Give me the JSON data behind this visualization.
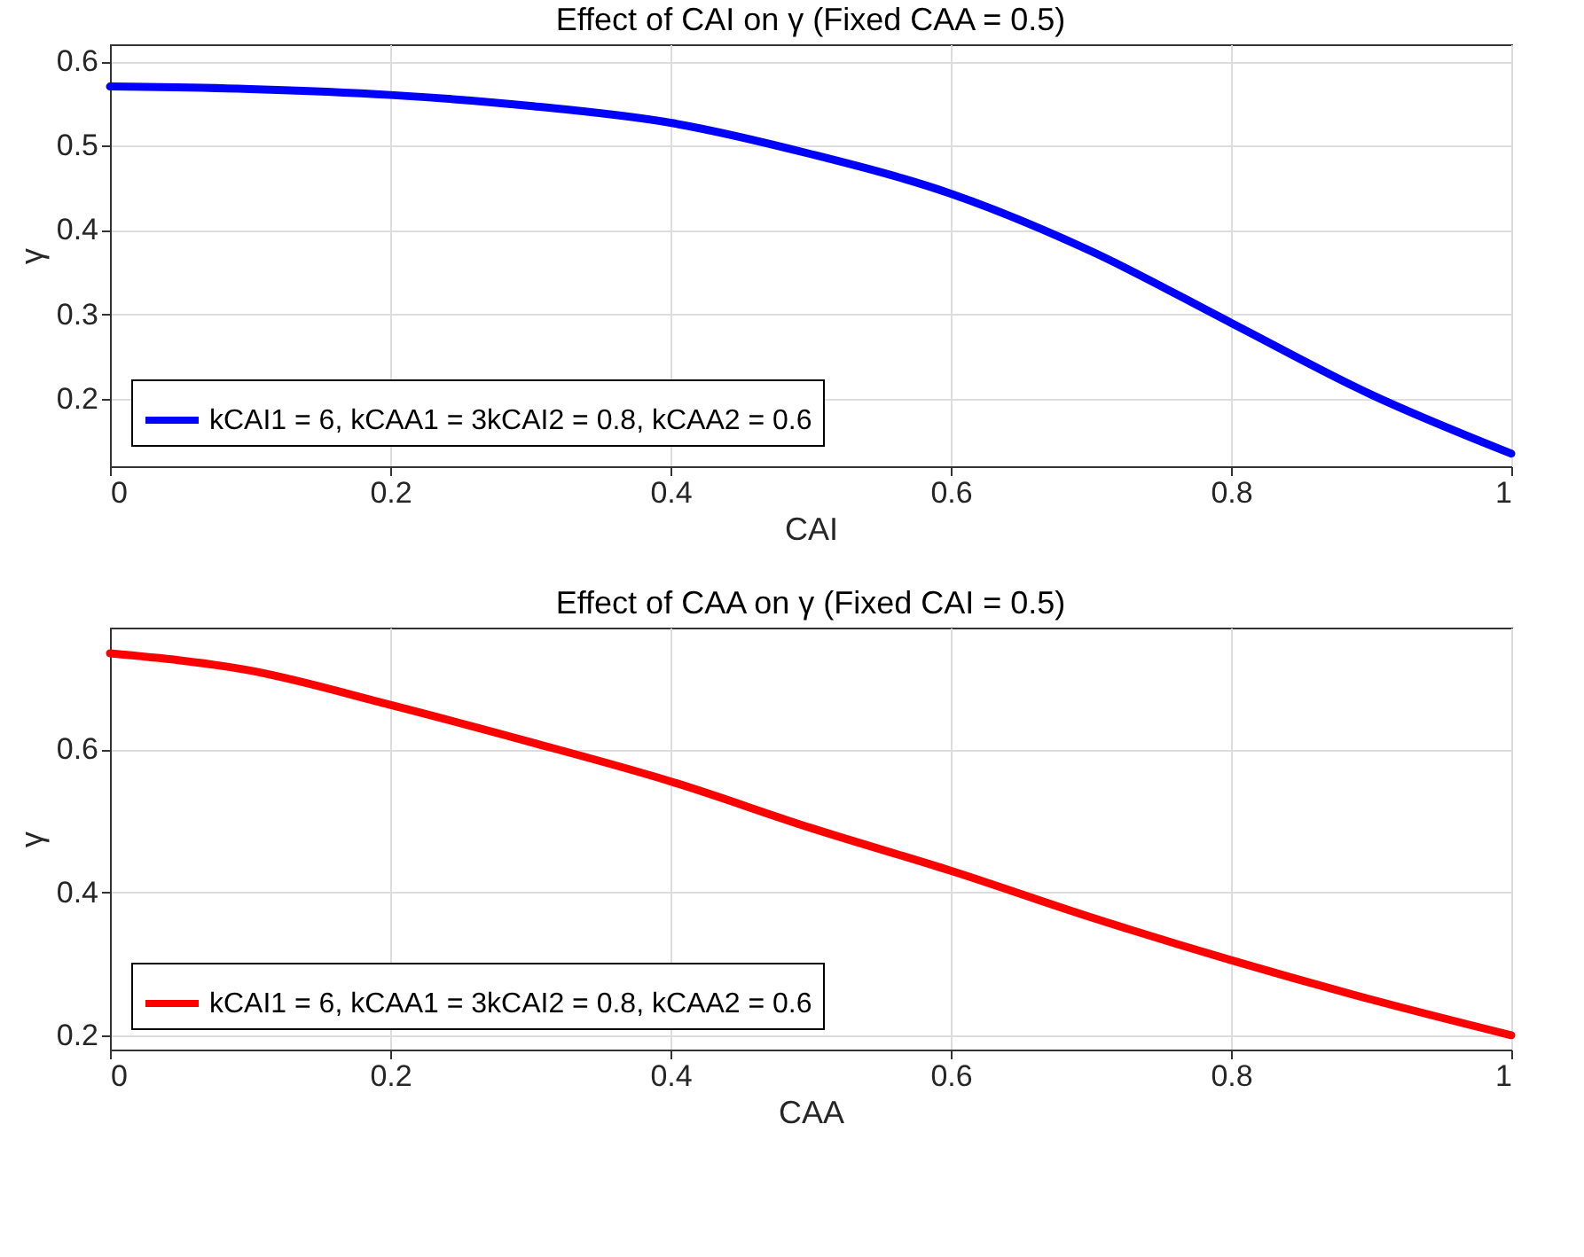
{
  "chart_data": [
    {
      "type": "line",
      "title": "Effect of CAI on γ (Fixed CAA = 0.5)",
      "xlabel": "CAI",
      "ylabel": "γ",
      "x": [
        0,
        0.1,
        0.2,
        0.3,
        0.4,
        0.5,
        0.6,
        0.7,
        0.8,
        0.9,
        1.0
      ],
      "series": [
        {
          "name": "kCAI1 = 6, kCAA1 = 3kCAI2 = 0.8, kCAA2 = 0.6",
          "color": "#0000ff",
          "values": [
            0.57,
            0.567,
            0.56,
            0.547,
            0.527,
            0.49,
            0.443,
            0.375,
            0.29,
            0.205,
            0.135
          ]
        }
      ],
      "xlim": [
        0,
        1
      ],
      "xticks": [
        0,
        0.2,
        0.4,
        0.6,
        0.8,
        1
      ],
      "ylim": [
        0.12,
        0.62
      ],
      "yticks": [
        0.2,
        0.3,
        0.4,
        0.5,
        0.6
      ],
      "grid": true,
      "legend": "bottom left",
      "marker": "none",
      "line_style": "solid"
    },
    {
      "type": "line",
      "title": "Effect of CAA on γ (Fixed CAI = 0.5)",
      "xlabel": "CAA",
      "ylabel": "γ",
      "x": [
        0,
        0.1,
        0.2,
        0.3,
        0.4,
        0.5,
        0.6,
        0.7,
        0.8,
        0.9,
        1.0
      ],
      "series": [
        {
          "name": "kCAI1 = 6, kCAA1 = 3kCAI2 = 0.8, kCAA2 = 0.6",
          "color": "#ff0000",
          "values": [
            0.734,
            0.71,
            0.662,
            0.61,
            0.555,
            0.49,
            0.43,
            0.365,
            0.305,
            0.25,
            0.2
          ]
        }
      ],
      "xlim": [
        0,
        1
      ],
      "xticks": [
        0,
        0.2,
        0.4,
        0.6,
        0.8,
        1
      ],
      "ylim": [
        0.18,
        0.77
      ],
      "yticks": [
        0.2,
        0.4,
        0.6
      ],
      "grid": true,
      "legend": "bottom left",
      "marker": "none",
      "line_style": "solid"
    }
  ]
}
